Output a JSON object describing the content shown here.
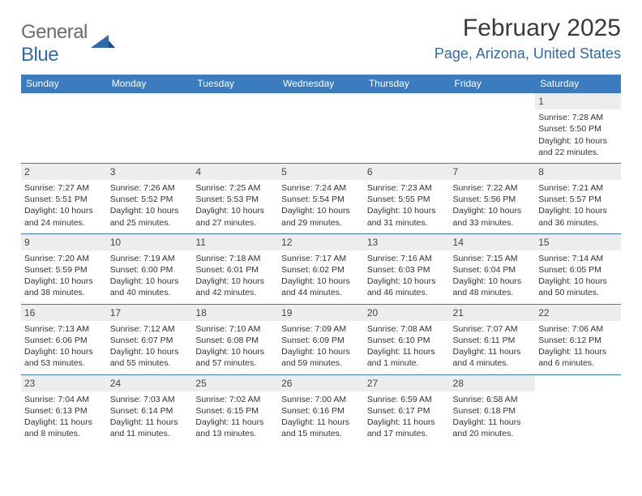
{
  "brand": {
    "part1": "General",
    "part2": "Blue"
  },
  "title": "February 2025",
  "location": "Page, Arizona, United States",
  "colors": {
    "header_bg": "#3a7cbf",
    "header_text": "#ffffff",
    "accent": "#2f6aad",
    "daynum_bg": "#ededed",
    "body_text": "#333333"
  },
  "weekdays": [
    "Sunday",
    "Monday",
    "Tuesday",
    "Wednesday",
    "Thursday",
    "Friday",
    "Saturday"
  ],
  "weeks": [
    [
      {
        "day": "",
        "text": ""
      },
      {
        "day": "",
        "text": ""
      },
      {
        "day": "",
        "text": ""
      },
      {
        "day": "",
        "text": ""
      },
      {
        "day": "",
        "text": ""
      },
      {
        "day": "",
        "text": ""
      },
      {
        "day": "1",
        "text": "Sunrise: 7:28 AM\nSunset: 5:50 PM\nDaylight: 10 hours and 22 minutes."
      }
    ],
    [
      {
        "day": "2",
        "text": "Sunrise: 7:27 AM\nSunset: 5:51 PM\nDaylight: 10 hours and 24 minutes."
      },
      {
        "day": "3",
        "text": "Sunrise: 7:26 AM\nSunset: 5:52 PM\nDaylight: 10 hours and 25 minutes."
      },
      {
        "day": "4",
        "text": "Sunrise: 7:25 AM\nSunset: 5:53 PM\nDaylight: 10 hours and 27 minutes."
      },
      {
        "day": "5",
        "text": "Sunrise: 7:24 AM\nSunset: 5:54 PM\nDaylight: 10 hours and 29 minutes."
      },
      {
        "day": "6",
        "text": "Sunrise: 7:23 AM\nSunset: 5:55 PM\nDaylight: 10 hours and 31 minutes."
      },
      {
        "day": "7",
        "text": "Sunrise: 7:22 AM\nSunset: 5:56 PM\nDaylight: 10 hours and 33 minutes."
      },
      {
        "day": "8",
        "text": "Sunrise: 7:21 AM\nSunset: 5:57 PM\nDaylight: 10 hours and 36 minutes."
      }
    ],
    [
      {
        "day": "9",
        "text": "Sunrise: 7:20 AM\nSunset: 5:59 PM\nDaylight: 10 hours and 38 minutes."
      },
      {
        "day": "10",
        "text": "Sunrise: 7:19 AM\nSunset: 6:00 PM\nDaylight: 10 hours and 40 minutes."
      },
      {
        "day": "11",
        "text": "Sunrise: 7:18 AM\nSunset: 6:01 PM\nDaylight: 10 hours and 42 minutes."
      },
      {
        "day": "12",
        "text": "Sunrise: 7:17 AM\nSunset: 6:02 PM\nDaylight: 10 hours and 44 minutes."
      },
      {
        "day": "13",
        "text": "Sunrise: 7:16 AM\nSunset: 6:03 PM\nDaylight: 10 hours and 46 minutes."
      },
      {
        "day": "14",
        "text": "Sunrise: 7:15 AM\nSunset: 6:04 PM\nDaylight: 10 hours and 48 minutes."
      },
      {
        "day": "15",
        "text": "Sunrise: 7:14 AM\nSunset: 6:05 PM\nDaylight: 10 hours and 50 minutes."
      }
    ],
    [
      {
        "day": "16",
        "text": "Sunrise: 7:13 AM\nSunset: 6:06 PM\nDaylight: 10 hours and 53 minutes."
      },
      {
        "day": "17",
        "text": "Sunrise: 7:12 AM\nSunset: 6:07 PM\nDaylight: 10 hours and 55 minutes."
      },
      {
        "day": "18",
        "text": "Sunrise: 7:10 AM\nSunset: 6:08 PM\nDaylight: 10 hours and 57 minutes."
      },
      {
        "day": "19",
        "text": "Sunrise: 7:09 AM\nSunset: 6:09 PM\nDaylight: 10 hours and 59 minutes."
      },
      {
        "day": "20",
        "text": "Sunrise: 7:08 AM\nSunset: 6:10 PM\nDaylight: 11 hours and 1 minute."
      },
      {
        "day": "21",
        "text": "Sunrise: 7:07 AM\nSunset: 6:11 PM\nDaylight: 11 hours and 4 minutes."
      },
      {
        "day": "22",
        "text": "Sunrise: 7:06 AM\nSunset: 6:12 PM\nDaylight: 11 hours and 6 minutes."
      }
    ],
    [
      {
        "day": "23",
        "text": "Sunrise: 7:04 AM\nSunset: 6:13 PM\nDaylight: 11 hours and 8 minutes."
      },
      {
        "day": "24",
        "text": "Sunrise: 7:03 AM\nSunset: 6:14 PM\nDaylight: 11 hours and 11 minutes."
      },
      {
        "day": "25",
        "text": "Sunrise: 7:02 AM\nSunset: 6:15 PM\nDaylight: 11 hours and 13 minutes."
      },
      {
        "day": "26",
        "text": "Sunrise: 7:00 AM\nSunset: 6:16 PM\nDaylight: 11 hours and 15 minutes."
      },
      {
        "day": "27",
        "text": "Sunrise: 6:59 AM\nSunset: 6:17 PM\nDaylight: 11 hours and 17 minutes."
      },
      {
        "day": "28",
        "text": "Sunrise: 6:58 AM\nSunset: 6:18 PM\nDaylight: 11 hours and 20 minutes."
      },
      {
        "day": "",
        "text": ""
      }
    ]
  ]
}
